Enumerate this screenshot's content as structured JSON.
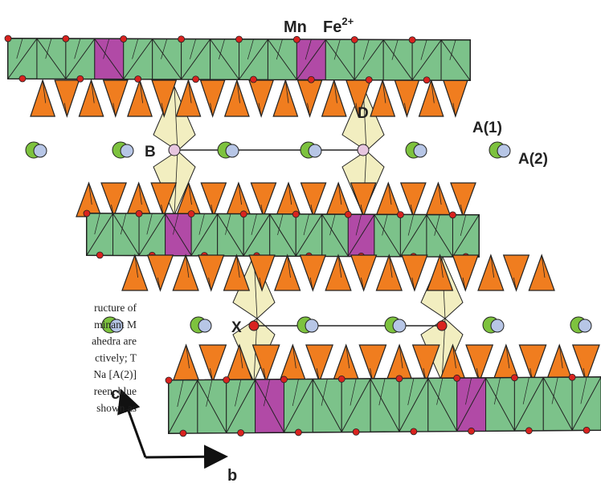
{
  "labels": {
    "mn": "Mn",
    "fe": {
      "base": "Fe",
      "sup": "2+"
    },
    "d": "D",
    "a1": "A(1)",
    "a2": "A(2)",
    "b_site": "B",
    "x_site": "X",
    "axis_c": "c",
    "axis_b": "b"
  },
  "caption": [
    "ructure of",
    "minant M",
    "ahedra are",
    "ctively; T",
    "Na [A(2)]",
    "reen, blue",
    "shown as"
  ]
}
